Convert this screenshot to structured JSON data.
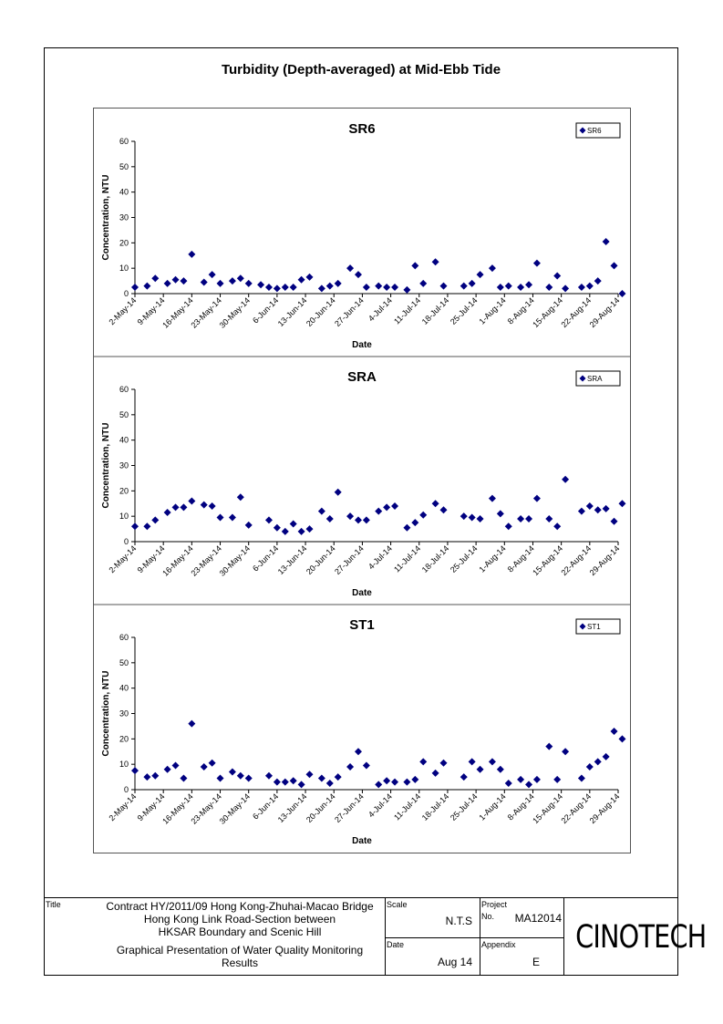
{
  "page_title": "Turbidity (Depth-averaged) at Mid-Ebb Tide",
  "colors": {
    "marker": "#000080",
    "axis": "#000000"
  },
  "chart_data": [
    {
      "type": "scatter",
      "title": "SR6",
      "xlabel": "Date",
      "ylabel": "Concentration, NTU",
      "ylim": [
        0,
        60
      ],
      "yticks": [
        0,
        10,
        20,
        30,
        40,
        50,
        60
      ],
      "xlim": [
        "2014-05-02",
        "2014-08-29"
      ],
      "xticks": [
        "2-May-14",
        "9-May-14",
        "16-May-14",
        "23-May-14",
        "30-May-14",
        "6-Jun-14",
        "13-Jun-14",
        "20-Jun-14",
        "27-Jun-14",
        "4-Jul-14",
        "11-Jul-14",
        "18-Jul-14",
        "25-Jul-14",
        "1-Aug-14",
        "8-Aug-14",
        "15-Aug-14",
        "22-Aug-14",
        "29-Aug-14"
      ],
      "grid": false,
      "legend": "top-right",
      "series": [
        {
          "name": "SR6",
          "marker": "diamond",
          "x": [
            "2014-05-02",
            "2014-05-05",
            "2014-05-07",
            "2014-05-10",
            "2014-05-12",
            "2014-05-14",
            "2014-05-16",
            "2014-05-19",
            "2014-05-21",
            "2014-05-23",
            "2014-05-26",
            "2014-05-28",
            "2014-05-30",
            "2014-06-02",
            "2014-06-04",
            "2014-06-06",
            "2014-06-08",
            "2014-06-10",
            "2014-06-12",
            "2014-06-14",
            "2014-06-17",
            "2014-06-19",
            "2014-06-21",
            "2014-06-24",
            "2014-06-26",
            "2014-06-28",
            "2014-07-01",
            "2014-07-03",
            "2014-07-05",
            "2014-07-08",
            "2014-07-10",
            "2014-07-12",
            "2014-07-15",
            "2014-07-17",
            "2014-07-22",
            "2014-07-24",
            "2014-07-26",
            "2014-07-29",
            "2014-07-31",
            "2014-08-02",
            "2014-08-05",
            "2014-08-07",
            "2014-08-09",
            "2014-08-12",
            "2014-08-14",
            "2014-08-16",
            "2014-08-20",
            "2014-08-22",
            "2014-08-24",
            "2014-08-26",
            "2014-08-28",
            "2014-08-30"
          ],
          "y": [
            2.5,
            3,
            6,
            4,
            5.5,
            5,
            15.5,
            4.5,
            7.5,
            4,
            5,
            6,
            4,
            3.5,
            2.5,
            2,
            2.5,
            2.5,
            5.5,
            6.5,
            2,
            3,
            4,
            10,
            7.5,
            2.5,
            3,
            2.5,
            2.5,
            1.5,
            11,
            4,
            12.5,
            3,
            3,
            4,
            7.5,
            10,
            2.5,
            3,
            2.5,
            3.5,
            12,
            2.5,
            7,
            2,
            2.5,
            3,
            5,
            20.5,
            11,
            0
          ]
        }
      ]
    },
    {
      "type": "scatter",
      "title": "SRA",
      "xlabel": "Date",
      "ylabel": "Concentration, NTU",
      "ylim": [
        0,
        60
      ],
      "yticks": [
        0,
        10,
        20,
        30,
        40,
        50,
        60
      ],
      "xlim": [
        "2014-05-02",
        "2014-08-29"
      ],
      "xticks": [
        "2-May-14",
        "9-May-14",
        "16-May-14",
        "23-May-14",
        "30-May-14",
        "6-Jun-14",
        "13-Jun-14",
        "20-Jun-14",
        "27-Jun-14",
        "4-Jul-14",
        "11-Jul-14",
        "18-Jul-14",
        "25-Jul-14",
        "1-Aug-14",
        "8-Aug-14",
        "15-Aug-14",
        "22-Aug-14",
        "29-Aug-14"
      ],
      "grid": false,
      "legend": "top-right",
      "series": [
        {
          "name": "SRA",
          "marker": "diamond",
          "x": [
            "2014-05-02",
            "2014-05-05",
            "2014-05-07",
            "2014-05-10",
            "2014-05-12",
            "2014-05-14",
            "2014-05-16",
            "2014-05-19",
            "2014-05-21",
            "2014-05-23",
            "2014-05-26",
            "2014-05-28",
            "2014-05-30",
            "2014-06-04",
            "2014-06-06",
            "2014-06-08",
            "2014-06-10",
            "2014-06-12",
            "2014-06-14",
            "2014-06-17",
            "2014-06-19",
            "2014-06-21",
            "2014-06-24",
            "2014-06-26",
            "2014-06-28",
            "2014-07-01",
            "2014-07-03",
            "2014-07-05",
            "2014-07-08",
            "2014-07-10",
            "2014-07-12",
            "2014-07-15",
            "2014-07-17",
            "2014-07-22",
            "2014-07-24",
            "2014-07-26",
            "2014-07-29",
            "2014-07-31",
            "2014-08-02",
            "2014-08-05",
            "2014-08-07",
            "2014-08-09",
            "2014-08-12",
            "2014-08-14",
            "2014-08-16",
            "2014-08-20",
            "2014-08-22",
            "2014-08-24",
            "2014-08-26",
            "2014-08-28",
            "2014-08-30"
          ],
          "y": [
            6,
            6,
            8.5,
            11.5,
            13.5,
            13.5,
            16,
            14.5,
            14,
            9.5,
            9.5,
            17.5,
            6.5,
            8.5,
            5.5,
            4,
            7,
            4,
            5,
            12,
            9,
            19.5,
            10,
            8.5,
            8.5,
            12,
            13.5,
            14,
            5.5,
            7.5,
            10.5,
            15,
            12.5,
            10,
            9.5,
            9,
            17,
            11,
            6,
            9,
            9,
            17,
            9,
            6,
            24.5,
            12,
            14,
            12.5,
            13,
            8,
            15
          ]
        }
      ]
    },
    {
      "type": "scatter",
      "title": "ST1",
      "xlabel": "Date",
      "ylabel": "Concentration, NTU",
      "ylim": [
        0,
        60
      ],
      "yticks": [
        0,
        10,
        20,
        30,
        40,
        50,
        60
      ],
      "xlim": [
        "2014-05-02",
        "2014-08-29"
      ],
      "xticks": [
        "2-May-14",
        "9-May-14",
        "16-May-14",
        "23-May-14",
        "30-May-14",
        "6-Jun-14",
        "13-Jun-14",
        "20-Jun-14",
        "27-Jun-14",
        "4-Jul-14",
        "11-Jul-14",
        "18-Jul-14",
        "25-Jul-14",
        "1-Aug-14",
        "8-Aug-14",
        "15-Aug-14",
        "22-Aug-14",
        "29-Aug-14"
      ],
      "grid": false,
      "legend": "top-right",
      "series": [
        {
          "name": "ST1",
          "marker": "diamond",
          "x": [
            "2014-05-02",
            "2014-05-05",
            "2014-05-07",
            "2014-05-10",
            "2014-05-12",
            "2014-05-14",
            "2014-05-16",
            "2014-05-19",
            "2014-05-21",
            "2014-05-23",
            "2014-05-26",
            "2014-05-28",
            "2014-05-30",
            "2014-06-04",
            "2014-06-06",
            "2014-06-08",
            "2014-06-10",
            "2014-06-12",
            "2014-06-14",
            "2014-06-17",
            "2014-06-19",
            "2014-06-21",
            "2014-06-24",
            "2014-06-26",
            "2014-06-28",
            "2014-07-01",
            "2014-07-03",
            "2014-07-05",
            "2014-07-08",
            "2014-07-10",
            "2014-07-12",
            "2014-07-15",
            "2014-07-17",
            "2014-07-22",
            "2014-07-24",
            "2014-07-26",
            "2014-07-29",
            "2014-07-31",
            "2014-08-02",
            "2014-08-05",
            "2014-08-07",
            "2014-08-09",
            "2014-08-12",
            "2014-08-14",
            "2014-08-16",
            "2014-08-20",
            "2014-08-22",
            "2014-08-24",
            "2014-08-26",
            "2014-08-28",
            "2014-08-30"
          ],
          "y": [
            7.5,
            5,
            5.5,
            8,
            9.5,
            4.5,
            26,
            9,
            10.5,
            4.5,
            7,
            5.5,
            4.5,
            5.5,
            3,
            3,
            3.5,
            2,
            6,
            4.5,
            2.5,
            5,
            9,
            15,
            9.5,
            2,
            3.5,
            3,
            3,
            4,
            11,
            6.5,
            10.5,
            5,
            11,
            8,
            11,
            8,
            2.5,
            4,
            2,
            4,
            17,
            4,
            15,
            4.5,
            9,
            11,
            13,
            23,
            20
          ]
        }
      ]
    }
  ],
  "titleblock": {
    "title_label": "Title",
    "title_line1": "Contract HY/2011/09 Hong Kong-Zhuhai-Macao Bridge",
    "title_line2": "Hong Kong Link Road-Section between",
    "title_line3": "HKSAR Boundary and Scenic Hill",
    "title_line4": "Graphical Presentation of Water Quality Monitoring",
    "title_line5": "Results",
    "scale_label": "Scale",
    "scale_value": "N.T.S",
    "date_label": "Date",
    "date_value": "Aug 14",
    "project_label": "Project",
    "project_no_label": "No.",
    "project_no_value": "MA12014",
    "appendix_label": "Appendix",
    "appendix_value": "E",
    "logo_text": "CINOTECH"
  }
}
